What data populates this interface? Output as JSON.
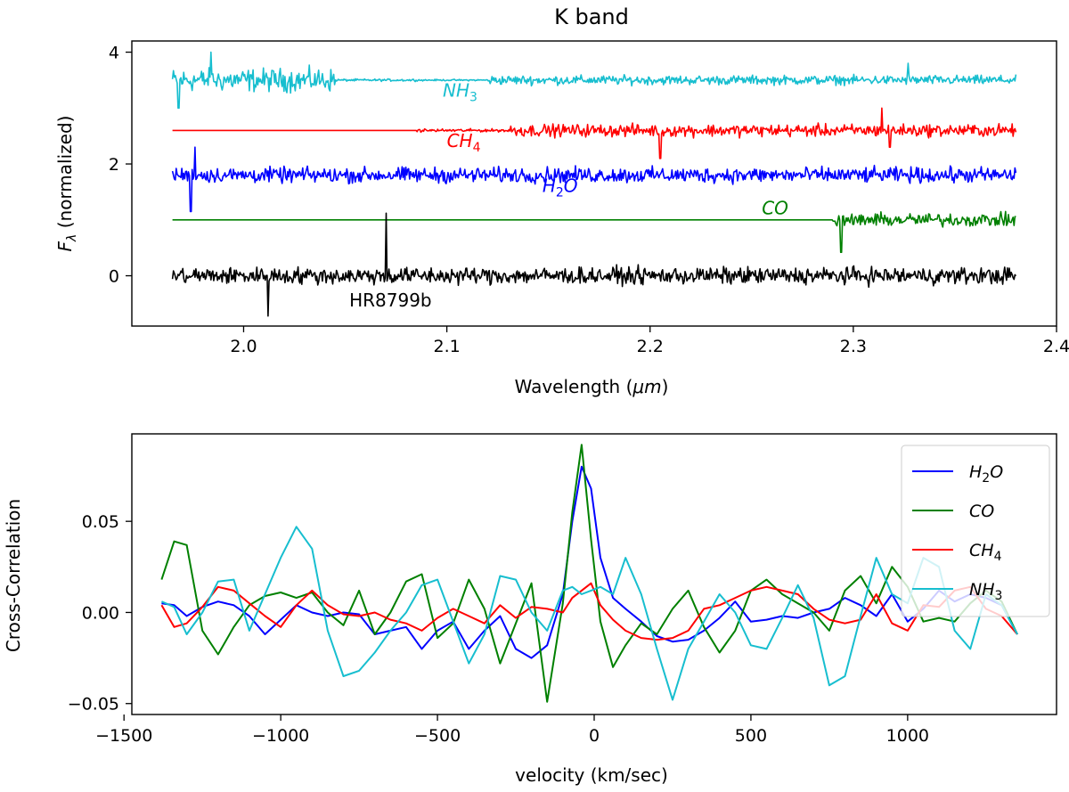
{
  "colors": {
    "h2o": "#0000ff",
    "co": "#008000",
    "ch4": "#ff0000",
    "nh3": "#17becf",
    "data": "#000000",
    "axis": "#000000"
  },
  "chart_data": [
    {
      "type": "line",
      "title": "K band",
      "xlabel": "Wavelength (μm)",
      "xlabel_main": "Wavelength (",
      "xlabel_unit": "μm",
      "xlabel_close": ")",
      "ylabel": "F_λ (normalized)",
      "ylabel_symbol": "F",
      "ylabel_sub": "λ",
      "ylabel_rest": " (normalized)",
      "xlim": [
        1.945,
        2.4
      ],
      "ylim": [
        -0.9,
        4.2
      ],
      "xticks": [
        2.0,
        2.1,
        2.2,
        2.3,
        2.4
      ],
      "xtick_labels": [
        "2.0",
        "2.1",
        "2.2",
        "2.3",
        "2.4"
      ],
      "yticks": [
        0,
        2,
        4
      ],
      "ytick_labels": [
        "0",
        "2",
        "4"
      ],
      "x_range": [
        1.965,
        2.38
      ],
      "series": [
        {
          "key": "nh3",
          "name": "NH3",
          "label": "NH",
          "sub": "3",
          "offset": 3.5,
          "label_x": 2.098,
          "label_y": 3.2,
          "segments": [
            [
              1.965,
              2.045,
              0.3
            ],
            [
              2.045,
              2.085,
              0.03
            ],
            [
              2.085,
              2.12,
              0.02
            ],
            [
              2.12,
              2.38,
              0.12
            ]
          ]
        },
        {
          "key": "ch4",
          "name": "CH4",
          "label": "CH",
          "sub": "4",
          "offset": 2.6,
          "label_x": 2.1,
          "label_y": 2.3,
          "segments": [
            [
              1.965,
              2.085,
              0.0
            ],
            [
              2.085,
              2.13,
              0.04
            ],
            [
              2.13,
              2.38,
              0.16
            ]
          ]
        },
        {
          "key": "h2o",
          "name": "H2O",
          "label": "H",
          "sub": "2",
          "label_tail": "O",
          "offset": 1.8,
          "label_x": 2.147,
          "label_y": 1.5,
          "segments": [
            [
              1.965,
              2.38,
              0.2
            ]
          ]
        },
        {
          "key": "co",
          "name": "CO",
          "label": "CO",
          "sub": "",
          "offset": 1.0,
          "label_x": 2.255,
          "label_y": 1.1,
          "segments": [
            [
              1.965,
              2.29,
              0.0
            ],
            [
              2.29,
              2.38,
              0.17
            ]
          ]
        },
        {
          "key": "data",
          "name": "HR8799b",
          "label": "HR8799b",
          "sub": "",
          "offset": 0.0,
          "label_x": 2.052,
          "label_y": -0.55,
          "segments": [
            [
              1.965,
              2.38,
              0.22
            ]
          ]
        }
      ],
      "features": [
        {
          "series": "data",
          "x": 2.07,
          "value": 1.12
        },
        {
          "series": "data",
          "x": 2.012,
          "value": -0.72
        },
        {
          "series": "co",
          "x": 2.294,
          "value": 0.42
        },
        {
          "series": "co",
          "x": 2.3,
          "value": 0.92
        },
        {
          "series": "ch4",
          "x": 2.314,
          "value": 3.0
        },
        {
          "series": "ch4",
          "x": 2.318,
          "value": 2.3
        },
        {
          "series": "ch4",
          "x": 2.205,
          "value": 2.1
        },
        {
          "series": "nh3",
          "x": 1.968,
          "value": 3.0
        },
        {
          "series": "nh3",
          "x": 1.984,
          "value": 4.0
        },
        {
          "series": "nh3",
          "x": 2.327,
          "value": 3.8
        },
        {
          "series": "h2o",
          "x": 1.974,
          "value": 1.15
        },
        {
          "series": "h2o",
          "x": 1.976,
          "value": 2.3
        }
      ]
    },
    {
      "type": "line",
      "title": "",
      "xlabel": "velocity (km/sec)",
      "ylabel": "Cross-Correlation",
      "xlim": [
        -1475,
        1475
      ],
      "ylim": [
        -0.056,
        0.098
      ],
      "xticks": [
        -1500,
        -1000,
        -500,
        0,
        500,
        1000
      ],
      "xtick_labels": [
        "−1500",
        "−1000",
        "−500",
        "0",
        "500",
        "1000"
      ],
      "yticks": [
        -0.05,
        0.0,
        0.05
      ],
      "ytick_labels": [
        "−0.05",
        "0.00",
        "0.05"
      ],
      "legend_position": "upper right",
      "series": [
        {
          "key": "h2o",
          "name": "H2O",
          "label": "H",
          "sub": "2",
          "label_tail": "O",
          "x": [
            -1380,
            -1340,
            -1300,
            -1250,
            -1200,
            -1150,
            -1100,
            -1050,
            -1000,
            -950,
            -900,
            -850,
            -800,
            -750,
            -700,
            -650,
            -600,
            -550,
            -500,
            -450,
            -400,
            -350,
            -300,
            -250,
            -200,
            -150,
            -100,
            -70,
            -40,
            -10,
            20,
            60,
            100,
            150,
            200,
            250,
            300,
            350,
            400,
            450,
            500,
            550,
            600,
            650,
            700,
            750,
            800,
            850,
            900,
            950,
            1000,
            1050,
            1100,
            1150,
            1200,
            1250,
            1300,
            1350
          ],
          "y": [
            0.005,
            0.004,
            -0.002,
            0.003,
            0.006,
            0.004,
            -0.002,
            -0.012,
            -0.004,
            0.004,
            0.0,
            -0.002,
            0.0,
            -0.001,
            -0.012,
            -0.01,
            -0.008,
            -0.02,
            -0.01,
            -0.005,
            -0.02,
            -0.01,
            -0.002,
            -0.02,
            -0.025,
            -0.018,
            0.01,
            0.05,
            0.08,
            0.068,
            0.03,
            0.008,
            0.002,
            -0.005,
            -0.013,
            -0.016,
            -0.015,
            -0.01,
            -0.003,
            0.006,
            -0.005,
            -0.004,
            -0.002,
            -0.003,
            0.0,
            0.002,
            0.008,
            0.004,
            -0.002,
            0.01,
            -0.005,
            0.002,
            0.012,
            0.006,
            0.01,
            0.008,
            0.004,
            -0.012
          ]
        },
        {
          "key": "co",
          "name": "CO",
          "label": "CO",
          "sub": "",
          "x": [
            -1380,
            -1340,
            -1300,
            -1250,
            -1200,
            -1150,
            -1100,
            -1050,
            -1000,
            -950,
            -900,
            -850,
            -800,
            -750,
            -700,
            -650,
            -600,
            -550,
            -500,
            -450,
            -400,
            -350,
            -300,
            -250,
            -200,
            -150,
            -100,
            -70,
            -40,
            -10,
            20,
            60,
            100,
            150,
            200,
            250,
            300,
            350,
            400,
            450,
            500,
            550,
            600,
            650,
            700,
            750,
            800,
            850,
            900,
            950,
            1000,
            1050,
            1100,
            1150,
            1200,
            1250,
            1300,
            1350
          ],
          "y": [
            0.018,
            0.039,
            0.037,
            -0.01,
            -0.023,
            -0.008,
            0.004,
            0.009,
            0.011,
            0.008,
            0.011,
            0.0,
            -0.007,
            0.012,
            -0.012,
            0.0,
            0.017,
            0.021,
            -0.014,
            -0.006,
            0.018,
            0.002,
            -0.028,
            -0.006,
            0.016,
            -0.049,
            0.005,
            0.055,
            0.092,
            0.04,
            -0.005,
            -0.03,
            -0.018,
            -0.006,
            -0.012,
            0.002,
            0.012,
            -0.008,
            -0.022,
            -0.01,
            0.012,
            0.018,
            0.01,
            0.005,
            0.0,
            -0.01,
            0.012,
            0.02,
            0.005,
            0.025,
            0.014,
            -0.005,
            -0.003,
            -0.005,
            0.005,
            0.012,
            0.006,
            -0.012
          ]
        },
        {
          "key": "ch4",
          "name": "CH4",
          "label": "CH",
          "sub": "4",
          "x": [
            -1380,
            -1340,
            -1300,
            -1250,
            -1200,
            -1150,
            -1100,
            -1050,
            -1000,
            -950,
            -900,
            -850,
            -800,
            -750,
            -700,
            -650,
            -600,
            -550,
            -500,
            -450,
            -400,
            -350,
            -300,
            -250,
            -200,
            -150,
            -100,
            -70,
            -40,
            -10,
            20,
            60,
            100,
            150,
            200,
            250,
            300,
            350,
            400,
            450,
            500,
            550,
            600,
            650,
            700,
            750,
            800,
            850,
            900,
            950,
            1000,
            1050,
            1100,
            1150,
            1200,
            1250,
            1300,
            1350
          ],
          "y": [
            0.004,
            -0.008,
            -0.006,
            0.003,
            0.014,
            0.012,
            0.005,
            -0.002,
            -0.008,
            0.004,
            0.012,
            0.004,
            -0.001,
            -0.002,
            0.0,
            -0.004,
            -0.006,
            -0.01,
            -0.003,
            0.002,
            -0.002,
            -0.006,
            0.004,
            -0.003,
            0.003,
            0.002,
            0.0,
            0.008,
            0.012,
            0.016,
            0.004,
            -0.004,
            -0.01,
            -0.014,
            -0.015,
            -0.014,
            -0.01,
            0.002,
            0.004,
            0.008,
            0.012,
            0.014,
            0.012,
            0.01,
            0.002,
            -0.004,
            -0.006,
            -0.004,
            0.01,
            -0.006,
            -0.01,
            0.004,
            0.003,
            0.012,
            0.014,
            0.002,
            -0.002,
            -0.012
          ]
        },
        {
          "key": "nh3",
          "name": "NH3",
          "label": "NH",
          "sub": "3",
          "x": [
            -1380,
            -1340,
            -1300,
            -1250,
            -1200,
            -1150,
            -1100,
            -1050,
            -1000,
            -950,
            -900,
            -850,
            -800,
            -750,
            -700,
            -650,
            -600,
            -550,
            -500,
            -450,
            -400,
            -350,
            -300,
            -250,
            -200,
            -150,
            -100,
            -70,
            -40,
            -10,
            20,
            60,
            100,
            150,
            200,
            250,
            300,
            350,
            400,
            450,
            500,
            550,
            600,
            650,
            700,
            750,
            800,
            850,
            900,
            950,
            1000,
            1050,
            1100,
            1150,
            1200,
            1250,
            1300,
            1350
          ],
          "y": [
            0.006,
            0.003,
            -0.012,
            0.0,
            0.017,
            0.018,
            -0.01,
            0.01,
            0.03,
            0.047,
            0.035,
            -0.01,
            -0.035,
            -0.032,
            -0.022,
            -0.01,
            0.0,
            0.015,
            0.018,
            -0.005,
            -0.028,
            -0.012,
            0.02,
            0.018,
            0.0,
            -0.01,
            0.012,
            0.014,
            0.01,
            0.012,
            0.014,
            0.01,
            0.03,
            0.01,
            -0.02,
            -0.048,
            -0.02,
            -0.005,
            0.01,
            0.0,
            -0.018,
            -0.02,
            -0.003,
            0.015,
            -0.003,
            -0.04,
            -0.035,
            -0.002,
            0.03,
            0.01,
            0.005,
            0.03,
            0.025,
            -0.01,
            -0.02,
            0.01,
            0.004,
            -0.012
          ]
        }
      ]
    }
  ]
}
